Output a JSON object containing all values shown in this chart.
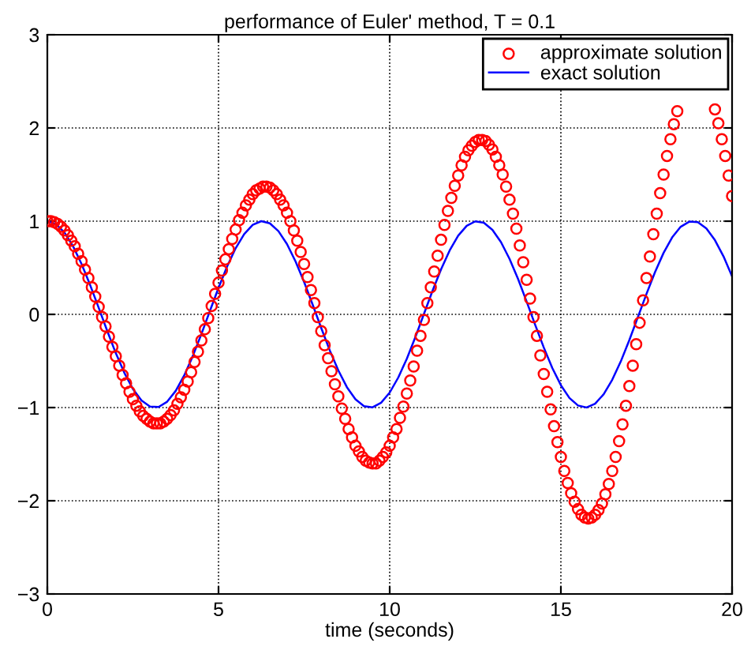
{
  "chart_data": {
    "type": "line",
    "title": "performance of Euler' method, T = 0.1",
    "xlabel": "time (seconds)",
    "xlim": [
      0,
      20
    ],
    "ylim": [
      -3,
      3
    ],
    "xticks": [
      0,
      5,
      10,
      15,
      20
    ],
    "yticks": [
      {
        "value": -3,
        "label": "−3"
      },
      {
        "value": -2,
        "label": "−2"
      },
      {
        "value": -1,
        "label": "−1"
      },
      0,
      1,
      2,
      3
    ],
    "grid": true,
    "legend": "top right",
    "line_style": "solid",
    "series": [
      {
        "name": "approximate solution",
        "type": "scatter",
        "marker": "circle",
        "color": "#ff0000",
        "x": [
          0,
          0.1,
          0.2,
          0.3,
          0.4,
          0.5,
          0.6,
          0.7,
          0.8,
          0.9,
          1,
          1.1,
          1.2,
          1.3,
          1.4,
          1.5,
          1.6,
          1.7,
          1.8,
          1.9,
          2,
          2.1,
          2.2,
          2.3,
          2.4,
          2.5,
          2.6,
          2.7,
          2.8,
          2.9,
          3,
          3.1,
          3.2,
          3.3,
          3.4,
          3.5,
          3.6,
          3.7,
          3.8,
          3.9,
          4,
          4.1,
          4.2,
          4.3,
          4.4,
          4.5,
          4.6,
          4.7,
          4.8,
          4.9,
          5,
          5.1,
          5.2,
          5.3,
          5.4,
          5.5,
          5.6,
          5.7,
          5.8,
          5.9,
          6,
          6.1,
          6.2,
          6.3,
          6.4,
          6.5,
          6.6,
          6.7,
          6.8,
          6.9,
          7,
          7.1,
          7.2,
          7.3,
          7.4,
          7.5,
          7.6,
          7.7,
          7.8,
          7.9,
          8,
          8.1,
          8.2,
          8.3,
          8.4,
          8.5,
          8.6,
          8.7,
          8.8,
          8.9,
          9,
          9.1,
          9.2,
          9.3,
          9.4,
          9.5,
          9.6,
          9.7,
          9.8,
          9.9,
          10,
          10.1,
          10.2,
          10.3,
          10.4,
          10.5,
          10.6,
          10.7,
          10.8,
          10.9,
          11,
          11.1,
          11.2,
          11.3,
          11.4,
          11.5,
          11.6,
          11.7,
          11.8,
          11.9,
          12,
          12.1,
          12.2,
          12.3,
          12.4,
          12.5,
          12.6,
          12.7,
          12.8,
          12.9,
          13,
          13.1,
          13.2,
          13.3,
          13.4,
          13.5,
          13.6,
          13.7,
          13.8,
          13.9,
          14,
          14.1,
          14.2,
          14.3,
          14.4,
          14.5,
          14.6,
          14.7,
          14.8,
          14.9,
          15,
          15.1,
          15.2,
          15.3,
          15.4,
          15.5,
          15.6,
          15.7,
          15.8,
          15.9,
          16,
          16.1,
          16.2,
          16.3,
          16.4,
          16.5,
          16.6,
          16.7,
          16.8,
          16.9,
          17,
          17.1,
          17.2,
          17.3,
          17.4,
          17.5,
          17.6,
          17.7,
          17.8,
          17.9,
          18,
          18.1,
          18.2,
          18.3,
          18.4,
          18.5,
          18.6,
          18.7,
          18.8,
          18.9,
          19,
          19.1,
          19.2,
          19.3,
          19.4,
          19.5,
          19.6,
          19.7,
          19.8,
          19.9,
          20
        ],
        "values": [
          1.0,
          1.0,
          0.99,
          0.97,
          0.94,
          0.9,
          0.85,
          0.79,
          0.73,
          0.65,
          0.57,
          0.48,
          0.39,
          0.29,
          0.19,
          0.08,
          -0.03,
          -0.13,
          -0.24,
          -0.35,
          -0.45,
          -0.55,
          -0.65,
          -0.74,
          -0.83,
          -0.91,
          -0.98,
          -1.04,
          -1.09,
          -1.12,
          -1.15,
          -1.17,
          -1.17,
          -1.17,
          -1.15,
          -1.12,
          -1.08,
          -1.03,
          -0.96,
          -0.89,
          -0.81,
          -0.72,
          -0.62,
          -0.51,
          -0.4,
          -0.28,
          -0.16,
          -0.04,
          0.09,
          0.22,
          0.34,
          0.47,
          0.59,
          0.7,
          0.81,
          0.91,
          1.01,
          1.09,
          1.17,
          1.23,
          1.29,
          1.33,
          1.35,
          1.37,
          1.37,
          1.36,
          1.33,
          1.29,
          1.23,
          1.17,
          1.09,
          1.0,
          0.9,
          0.79,
          0.67,
          0.54,
          0.4,
          0.26,
          0.12,
          -0.03,
          -0.18,
          -0.33,
          -0.47,
          -0.61,
          -0.75,
          -0.88,
          -1.01,
          -1.12,
          -1.23,
          -1.32,
          -1.41,
          -1.47,
          -1.53,
          -1.57,
          -1.59,
          -1.6,
          -1.6,
          -1.57,
          -1.53,
          -1.48,
          -1.41,
          -1.32,
          -1.23,
          -1.11,
          -0.99,
          -0.85,
          -0.71,
          -0.56,
          -0.39,
          -0.23,
          -0.06,
          0.12,
          0.29,
          0.46,
          0.63,
          0.8,
          0.96,
          1.11,
          1.25,
          1.38,
          1.49,
          1.6,
          1.69,
          1.76,
          1.81,
          1.85,
          1.87,
          1.87,
          1.86,
          1.82,
          1.77,
          1.69,
          1.6,
          1.5,
          1.37,
          1.23,
          1.08,
          0.92,
          0.74,
          0.56,
          0.37,
          0.17,
          -0.03,
          -0.23,
          -0.44,
          -0.64,
          -0.83,
          -1.02,
          -1.2,
          -1.37,
          -1.53,
          -1.68,
          -1.81,
          -1.92,
          -2.01,
          -2.09,
          -2.15,
          -2.18,
          -2.19,
          -2.18,
          -2.15,
          -2.1,
          -2.03,
          -1.93,
          -1.82,
          -1.68,
          -1.53,
          -1.36,
          -1.18,
          -0.98,
          -0.77,
          -0.55,
          -0.32,
          -0.09,
          0.15,
          0.39,
          0.62,
          0.86,
          1.08,
          1.3,
          1.5,
          1.7,
          1.88,
          2.04,
          2.18,
          null,
          null,
          null,
          null,
          null,
          null,
          null,
          null,
          null,
          null,
          2.2,
          2.05,
          1.88,
          1.7,
          1.49,
          1.27
        ]
      },
      {
        "name": "exact solution",
        "marker": "none",
        "color": "#0000ff",
        "x": [
          0,
          0.25,
          0.5,
          0.75,
          1,
          1.25,
          1.5,
          1.75,
          2,
          2.25,
          2.5,
          2.75,
          3,
          3.25,
          3.5,
          3.75,
          4,
          4.25,
          4.5,
          4.75,
          5,
          5.25,
          5.5,
          5.75,
          6,
          6.25,
          6.5,
          6.75,
          7,
          7.25,
          7.5,
          7.75,
          8,
          8.25,
          8.5,
          8.75,
          9,
          9.25,
          9.5,
          9.75,
          10,
          10.25,
          10.5,
          10.75,
          11,
          11.25,
          11.5,
          11.75,
          12,
          12.25,
          12.5,
          12.75,
          13,
          13.25,
          13.5,
          13.75,
          14,
          14.25,
          14.5,
          14.75,
          15,
          15.25,
          15.5,
          15.75,
          16,
          16.25,
          16.5,
          16.75,
          17,
          17.25,
          17.5,
          17.75,
          18,
          18.25,
          18.5,
          18.75,
          19,
          19.25,
          19.5,
          19.75,
          20
        ],
        "values": [
          1,
          0.969,
          0.878,
          0.732,
          0.54,
          0.315,
          0.071,
          -0.178,
          -0.416,
          -0.628,
          -0.801,
          -0.924,
          -0.99,
          -0.994,
          -0.937,
          -0.821,
          -0.654,
          -0.446,
          -0.211,
          0.038,
          0.284,
          0.512,
          0.709,
          0.861,
          0.96,
          1.0,
          0.977,
          0.893,
          0.754,
          0.568,
          0.347,
          0.104,
          -0.146,
          -0.387,
          -0.602,
          -0.781,
          -0.911,
          -0.985,
          -0.997,
          -0.948,
          -0.839,
          -0.678,
          -0.476,
          -0.243,
          0.004,
          0.252,
          0.483,
          0.685,
          0.844,
          0.95,
          0.998,
          0.983,
          0.907,
          0.775,
          0.595,
          0.379,
          0.137,
          -0.113,
          -0.355,
          -0.576,
          -0.76,
          -0.897,
          -0.978,
          -0.999,
          -0.958,
          -0.857,
          -0.702,
          -0.505,
          -0.275,
          -0.029,
          0.219,
          0.453,
          0.66,
          0.826,
          0.94,
          0.995,
          0.989,
          0.921,
          0.796,
          0.622,
          0.408
        ]
      }
    ]
  }
}
